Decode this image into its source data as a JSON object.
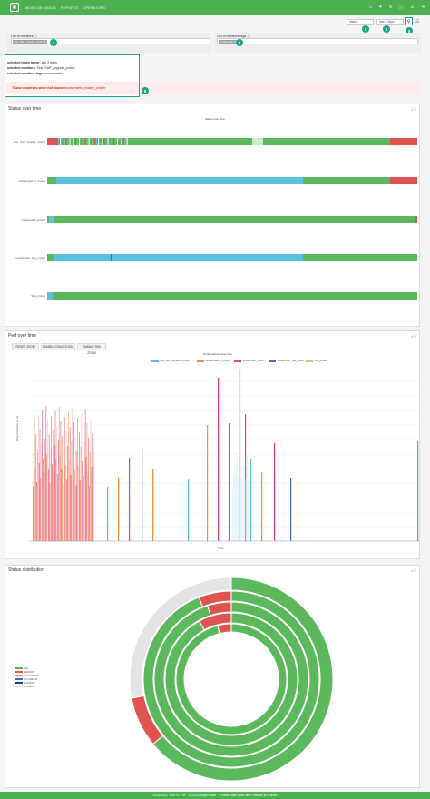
{
  "topbar": {
    "logo": "▣",
    "breadcrumb": [
      "MONITOR NEXUS",
      "REPORTS",
      "OPERATORS"
    ],
    "icons": [
      "home-icon",
      "settings-icon",
      "reload-icon",
      "info-icon",
      "user-icon",
      "logout-icon"
    ]
  },
  "controls": {
    "status_select": "status",
    "range_select": "last 2 days",
    "search_icon": "⚲",
    "menu_icon": "☰",
    "badges": [
      "1",
      "2",
      "3",
      "4",
      "5",
      "6"
    ]
  },
  "filters": {
    "monitors_label": "List of monitors ⓘ",
    "monitors_chip": "Test_SAP_angular_prober ✕",
    "tags_label": "List of monitors tags ⓘ",
    "tags_chip": "modacnweb ✕"
  },
  "info": {
    "range_label": "selected times range",
    "range_value": "last 2 days",
    "monitors_label": "selected monitors",
    "monitors_value": "Test_SAP_angular_prober",
    "tags_label": "selected monitors tags",
    "tags_value": "modacnweb",
    "not_found_label": "Those monitors were not found!",
    "not_found_value": "modacnweb_prober_prober"
  },
  "status_panel": {
    "title": "Status over time",
    "chart_title": "Status over time",
    "rows": [
      "Test_SAP_angular_prober",
      "modacnweb_3_prober",
      "modacnweb_prober",
      "modacnweb_ssa_prober",
      "Test_prober"
    ]
  },
  "perf_panel": {
    "title": "Perf over time",
    "buttons": [
      "RESET ZOOM",
      "DISABLE DRAG ZOOM",
      "ENABLE PAN ZOOM"
    ],
    "chart_title": "Performances over time",
    "legend": [
      "Test_SAP_angular_prober",
      "modacnweb_3_prober",
      "modacnweb_prober",
      "modacnweb_ssa_prober",
      "Test_prober"
    ],
    "ylabel": "Response time in ms",
    "xlabel": "Time"
  },
  "dist_panel": {
    "title": "Status distribution",
    "legend": [
      "OK",
      "ERROR",
      "EXCEPTION",
      "CLOSE-UP",
      "CONFIG",
      "TIMEOUT"
    ]
  },
  "footer": {
    "text": "8/15/2023, 3:50:01 PM · © 2023 MoguStudio · Created with Love and Passion in France"
  },
  "colors": {
    "brand": "#4caf50",
    "ok": "#5cb85c",
    "error": "#e05353",
    "blue": "#5bc0de",
    "accent": "#1aa58c",
    "pink": "#ec407a",
    "orange": "#f0903a",
    "darkblue": "#3f6fbf",
    "yellowgreen": "#b5d56a"
  },
  "chart_data": [
    {
      "type": "bar",
      "title": "Status over time",
      "categories": [
        "Test_SAP_angular_prober",
        "modacnweb_3_prober",
        "modacnweb_prober",
        "modacnweb_ssa_prober",
        "Test_prober"
      ],
      "dominant_status": [
        "OK",
        "CONFIG",
        "OK",
        "CONFIG",
        "OK"
      ]
    },
    {
      "type": "bar",
      "title": "Performances over time",
      "xlabel": "Time",
      "ylabel": "Response time in ms",
      "series": [
        {
          "name": "Test_SAP_angular_prober"
        },
        {
          "name": "modacnweb_3_prober"
        },
        {
          "name": "modacnweb_prober"
        },
        {
          "name": "modacnweb_ssa_prober"
        },
        {
          "name": "Test_prober"
        }
      ]
    },
    {
      "type": "pie",
      "title": "",
      "categories": [
        "OK",
        "ERROR",
        "EXCEPTION",
        "CLOSE-UP",
        "CONFIG",
        "TIMEOUT"
      ]
    }
  ]
}
